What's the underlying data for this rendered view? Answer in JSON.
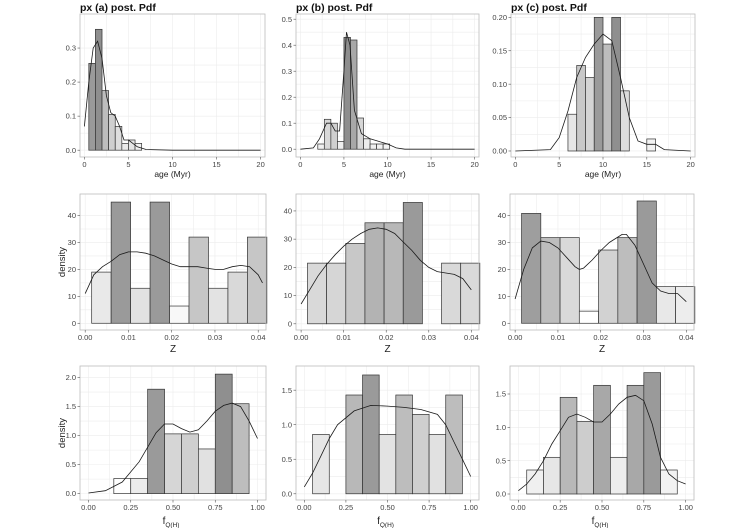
{
  "chart_data": [
    {
      "id": "a-age",
      "type": "bar",
      "title": "px (a) post. Pdf",
      "xlabel": "age (Myr)",
      "ylabel": "",
      "xlim": [
        -0.5,
        20.5
      ],
      "ylim": [
        -0.02,
        0.4
      ],
      "xticks": [
        0,
        5,
        10,
        15,
        20
      ],
      "yticks": [
        0.0,
        0.1,
        0.2,
        0.3
      ],
      "xtick_labels": [
        "0",
        "5",
        "10",
        "15",
        "20"
      ],
      "ytick_labels": [
        "0.0",
        "0.1",
        "0.2",
        "0.3"
      ],
      "bin_width": 0.75,
      "bins_left": [
        0.5,
        1.25,
        2.0,
        2.75,
        3.5,
        4.25,
        5.0,
        5.75
      ],
      "values": [
        0.255,
        0.355,
        0.175,
        0.105,
        0.07,
        0.02,
        0.03,
        0.02
      ],
      "shades": [
        "#9a9a9a",
        "#8f8f8f",
        "#bdbdbd",
        "#cfcfcf",
        "#dedede",
        "#ebebeb",
        "#e5e5e5",
        "#f2f2f2"
      ],
      "density": [
        [
          0,
          0.07
        ],
        [
          0.5,
          0.2
        ],
        [
          1,
          0.3
        ],
        [
          1.5,
          0.32
        ],
        [
          2,
          0.27
        ],
        [
          2.5,
          0.16
        ],
        [
          3,
          0.11
        ],
        [
          3.5,
          0.1
        ],
        [
          4,
          0.07
        ],
        [
          4.5,
          0.03
        ],
        [
          5,
          0.03
        ],
        [
          5.5,
          0.02
        ],
        [
          6,
          0.01
        ],
        [
          7,
          0.002
        ],
        [
          10,
          0.0
        ],
        [
          20,
          0.0
        ]
      ]
    },
    {
      "id": "b-age",
      "type": "bar",
      "title": "px (b) post. Pdf",
      "xlabel": "age (Myr)",
      "ylabel": "",
      "xlim": [
        -0.5,
        20.5
      ],
      "ylim": [
        -0.03,
        0.52
      ],
      "xticks": [
        0,
        5,
        10,
        15,
        20
      ],
      "yticks": [
        0.0,
        0.1,
        0.2,
        0.3,
        0.4,
        0.5
      ],
      "xtick_labels": [
        "0",
        "5",
        "10",
        "15",
        "20"
      ],
      "ytick_labels": [
        "0.0",
        "0.1",
        "0.2",
        "0.3",
        "0.4",
        "0.5"
      ],
      "bin_width": 0.75,
      "bins_left": [
        2.0,
        2.75,
        3.5,
        4.25,
        5.0,
        5.75,
        6.5,
        7.25,
        8.0,
        8.75,
        9.5
      ],
      "values": [
        0.02,
        0.115,
        0.1,
        0.03,
        0.43,
        0.42,
        0.12,
        0.04,
        0.02,
        0.02,
        0.02
      ],
      "shades": [
        "#f0f0f0",
        "#d8d8d8",
        "#cfcfcf",
        "#eeeeee",
        "#8e8e8e",
        "#a8a8a8",
        "#d6d6d6",
        "#ececec",
        "#f0f0f0",
        "#f2f2f2",
        "#f3f3f3"
      ],
      "density": [
        [
          0,
          0.0
        ],
        [
          1.5,
          0.005
        ],
        [
          2.2,
          0.04
        ],
        [
          3,
          0.1
        ],
        [
          3.5,
          0.1
        ],
        [
          4,
          0.07
        ],
        [
          4.5,
          0.07
        ],
        [
          5,
          0.3
        ],
        [
          5.3,
          0.45
        ],
        [
          5.7,
          0.4
        ],
        [
          6.2,
          0.15
        ],
        [
          7,
          0.06
        ],
        [
          8,
          0.04
        ],
        [
          9,
          0.03
        ],
        [
          10,
          0.02
        ],
        [
          11,
          0.005
        ],
        [
          12,
          0.0
        ],
        [
          20,
          0.0
        ]
      ]
    },
    {
      "id": "c-age",
      "type": "bar",
      "title": "px (c) post. Pdf",
      "xlabel": "age (Myr)",
      "ylabel": "",
      "xlim": [
        -0.5,
        20.5
      ],
      "ylim": [
        -0.009,
        0.205
      ],
      "xticks": [
        0,
        5,
        10,
        15,
        20
      ],
      "yticks": [
        0.0,
        0.05,
        0.1,
        0.15,
        0.2
      ],
      "xtick_labels": [
        "0",
        "5",
        "10",
        "15",
        "20"
      ],
      "ytick_labels": [
        "0.00",
        "0.05",
        "0.10",
        "0.15",
        "0.20"
      ],
      "bin_width": 1.0,
      "bins_left": [
        6,
        7,
        8,
        9,
        10,
        11,
        12,
        15
      ],
      "values": [
        0.055,
        0.128,
        0.11,
        0.2,
        0.16,
        0.2,
        0.09,
        0.018
      ],
      "shades": [
        "#e6e6e6",
        "#c8c8c8",
        "#d4d4d4",
        "#9a9a9a",
        "#bdbdbd",
        "#8f8f8f",
        "#dddddd",
        "#f2f2f2"
      ],
      "density": [
        [
          0,
          0.0
        ],
        [
          4,
          0.002
        ],
        [
          5,
          0.02
        ],
        [
          6,
          0.06
        ],
        [
          7,
          0.11
        ],
        [
          8,
          0.14
        ],
        [
          9,
          0.16
        ],
        [
          10,
          0.175
        ],
        [
          11,
          0.165
        ],
        [
          12,
          0.11
        ],
        [
          13,
          0.05
        ],
        [
          14,
          0.015
        ],
        [
          15,
          0.01
        ],
        [
          16,
          0.01
        ],
        [
          17,
          0.002
        ],
        [
          20,
          0.0
        ]
      ]
    },
    {
      "id": "a-z",
      "type": "bar",
      "title": "",
      "xlabel": "Z",
      "ylabel": "density",
      "xlim": [
        -0.0012,
        0.0418
      ],
      "ylim": [
        -2.5,
        48
      ],
      "xticks": [
        0.0,
        0.01,
        0.02,
        0.03,
        0.04
      ],
      "yticks": [
        0,
        10,
        20,
        30,
        40
      ],
      "xtick_labels": [
        "0.00",
        "0.01",
        "0.02",
        "0.03",
        "0.04"
      ],
      "ytick_labels": [
        "0",
        "10",
        "20",
        "30",
        "40"
      ],
      "bin_width": 0.0045,
      "bins_left": [
        0.0015,
        0.006,
        0.0105,
        0.015,
        0.0195,
        0.024,
        0.0285,
        0.033,
        0.0375
      ],
      "values": [
        19,
        45,
        13,
        45,
        6.4,
        32,
        13,
        19,
        32
      ],
      "shades": [
        "#e9e9e9",
        "#9a9a9a",
        "#e2e2e2",
        "#9a9a9a",
        "#f8f8f8",
        "#c6c6c6",
        "#e3e3e3",
        "#d9d9d9",
        "#c6c6c6"
      ],
      "density": [
        [
          0,
          11
        ],
        [
          0.002,
          18
        ],
        [
          0.004,
          21
        ],
        [
          0.006,
          23
        ],
        [
          0.008,
          25.5
        ],
        [
          0.01,
          26.5
        ],
        [
          0.012,
          26.5
        ],
        [
          0.014,
          26
        ],
        [
          0.016,
          25
        ],
        [
          0.018,
          23.5
        ],
        [
          0.02,
          22
        ],
        [
          0.022,
          21
        ],
        [
          0.024,
          21
        ],
        [
          0.026,
          21
        ],
        [
          0.028,
          20.5
        ],
        [
          0.03,
          20
        ],
        [
          0.032,
          20
        ],
        [
          0.034,
          21
        ],
        [
          0.036,
          21.5
        ],
        [
          0.038,
          21
        ],
        [
          0.04,
          18
        ],
        [
          0.041,
          15
        ]
      ]
    },
    {
      "id": "b-z",
      "type": "bar",
      "title": "",
      "xlabel": "Z",
      "ylabel": "",
      "xlim": [
        -0.0012,
        0.0418
      ],
      "ylim": [
        -2.2,
        46
      ],
      "xticks": [
        0.0,
        0.01,
        0.02,
        0.03,
        0.04
      ],
      "yticks": [
        0,
        10,
        20,
        30,
        40
      ],
      "xtick_labels": [
        "0.00",
        "0.01",
        "0.02",
        "0.03",
        "0.04"
      ],
      "ytick_labels": [
        "0",
        "10",
        "20",
        "30",
        "40"
      ],
      "bin_width": 0.0045,
      "bins_left": [
        0.0015,
        0.006,
        0.0105,
        0.015,
        0.0195,
        0.024,
        0.0285,
        0.033,
        0.0375
      ],
      "values": [
        21.5,
        21.5,
        28.5,
        35.8,
        35.8,
        43,
        0,
        21.5,
        21.5
      ],
      "shades": [
        "#d9d9d9",
        "#d6d6d6",
        "#c8c8c8",
        "#b3b3b3",
        "#b8b8b8",
        "#9a9a9a",
        "#ffffff",
        "#d9d9d9",
        "#d9d9d9"
      ],
      "density": [
        [
          0,
          7
        ],
        [
          0.002,
          12
        ],
        [
          0.004,
          17
        ],
        [
          0.006,
          21
        ],
        [
          0.008,
          24.5
        ],
        [
          0.01,
          27.5
        ],
        [
          0.012,
          30
        ],
        [
          0.014,
          32
        ],
        [
          0.016,
          33.5
        ],
        [
          0.018,
          34
        ],
        [
          0.02,
          33.5
        ],
        [
          0.022,
          32
        ],
        [
          0.024,
          29
        ],
        [
          0.026,
          26
        ],
        [
          0.028,
          22.5
        ],
        [
          0.03,
          20
        ],
        [
          0.032,
          18.5
        ],
        [
          0.034,
          18
        ],
        [
          0.036,
          17.5
        ],
        [
          0.038,
          16
        ],
        [
          0.04,
          12
        ]
      ]
    },
    {
      "id": "c-z",
      "type": "bar",
      "title": "",
      "xlabel": "Z",
      "ylabel": "",
      "xlim": [
        -0.0012,
        0.0418
      ],
      "ylim": [
        -2.5,
        48
      ],
      "xticks": [
        0.0,
        0.01,
        0.02,
        0.03,
        0.04
      ],
      "yticks": [
        0,
        10,
        20,
        30,
        40
      ],
      "xtick_labels": [
        "0.00",
        "0.01",
        "0.02",
        "0.03",
        "0.04"
      ],
      "ytick_labels": [
        "0",
        "10",
        "20",
        "30",
        "40"
      ],
      "bin_width": 0.0045,
      "bins_left": [
        0.0015,
        0.006,
        0.0105,
        0.015,
        0.0195,
        0.024,
        0.0285,
        0.033,
        0.0375
      ],
      "values": [
        40.8,
        31.8,
        31.8,
        4.5,
        27.2,
        31.8,
        45.4,
        13.6,
        13.6
      ],
      "shades": [
        "#9e9e9e",
        "#bdbdbd",
        "#d9d9d9",
        "#ffffff",
        "#d2d2d2",
        "#bdbdbd",
        "#9a9a9a",
        "#e8e8e8",
        "#ededed"
      ],
      "density": [
        [
          0,
          9
        ],
        [
          0.002,
          20
        ],
        [
          0.004,
          28
        ],
        [
          0.006,
          30.5
        ],
        [
          0.008,
          30
        ],
        [
          0.01,
          28
        ],
        [
          0.012,
          24.5
        ],
        [
          0.014,
          21
        ],
        [
          0.015,
          20
        ],
        [
          0.016,
          20.5
        ],
        [
          0.018,
          23.5
        ],
        [
          0.02,
          27
        ],
        [
          0.022,
          30
        ],
        [
          0.024,
          32
        ],
        [
          0.025,
          33
        ],
        [
          0.026,
          33
        ],
        [
          0.028,
          29
        ],
        [
          0.03,
          22
        ],
        [
          0.032,
          15
        ],
        [
          0.034,
          12
        ],
        [
          0.036,
          11
        ],
        [
          0.038,
          11
        ],
        [
          0.04,
          8
        ]
      ]
    },
    {
      "id": "a-fq",
      "type": "bar",
      "title": "",
      "xlabel": "f_Q(H)",
      "xlabel_main": "f",
      "xlabel_sub": "Q(H)",
      "ylabel": "density",
      "xlim": [
        -0.05,
        1.05
      ],
      "ylim": [
        -0.11,
        2.2
      ],
      "xticks": [
        0.0,
        0.25,
        0.5,
        0.75,
        1.0
      ],
      "yticks": [
        0.0,
        0.5,
        1.0,
        1.5,
        2.0
      ],
      "xtick_labels": [
        "0.00",
        "0.25",
        "0.50",
        "0.75",
        "1.00"
      ],
      "ytick_labels": [
        "0.0",
        "0.5",
        "1.0",
        "1.5",
        "2.0"
      ],
      "bin_width": 0.1,
      "bins_left": [
        0.15,
        0.25,
        0.35,
        0.45,
        0.55,
        0.65,
        0.75,
        0.85
      ],
      "values": [
        0.26,
        0.26,
        1.8,
        1.03,
        1.03,
        0.77,
        2.06,
        1.55
      ],
      "shades": [
        "#ffffff",
        "#ececec",
        "#9a9a9a",
        "#d6d6d6",
        "#cfcfcf",
        "#e1e1e1",
        "#8f8f8f",
        "#bdbdbd"
      ],
      "density": [
        [
          0,
          0.01
        ],
        [
          0.1,
          0.05
        ],
        [
          0.2,
          0.2
        ],
        [
          0.3,
          0.55
        ],
        [
          0.4,
          1.05
        ],
        [
          0.45,
          1.2
        ],
        [
          0.5,
          1.2
        ],
        [
          0.55,
          1.12
        ],
        [
          0.6,
          1.06
        ],
        [
          0.65,
          1.1
        ],
        [
          0.7,
          1.25
        ],
        [
          0.75,
          1.42
        ],
        [
          0.8,
          1.52
        ],
        [
          0.85,
          1.56
        ],
        [
          0.9,
          1.5
        ],
        [
          0.95,
          1.25
        ],
        [
          1.0,
          0.95
        ]
      ]
    },
    {
      "id": "b-fq",
      "type": "bar",
      "title": "",
      "xlabel": "f_Q(H)",
      "xlabel_main": "f",
      "xlabel_sub": "Q(H)",
      "ylabel": "",
      "xlim": [
        -0.05,
        1.05
      ],
      "ylim": [
        -0.09,
        1.85
      ],
      "xticks": [
        0.0,
        0.25,
        0.5,
        0.75,
        1.0
      ],
      "yticks": [
        0.0,
        0.5,
        1.0,
        1.5
      ],
      "xtick_labels": [
        "0.00",
        "0.25",
        "0.50",
        "0.75",
        "1.00"
      ],
      "ytick_labels": [
        "0.0",
        "0.5",
        "1.0",
        "1.5"
      ],
      "bin_width": 0.1,
      "bins_left": [
        0.05,
        0.15,
        0.25,
        0.35,
        0.45,
        0.55,
        0.65,
        0.75,
        0.85
      ],
      "values": [
        0.86,
        0.0,
        1.43,
        1.72,
        0.86,
        1.43,
        1.15,
        0.86,
        1.43
      ],
      "shades": [
        "#e6e6e6",
        "#ffffff",
        "#b8b8b8",
        "#9a9a9a",
        "#e3e3e3",
        "#bdbdbd",
        "#cfcfcf",
        "#e1e1e1",
        "#bdbdbd"
      ],
      "density": [
        [
          0,
          0.1
        ],
        [
          0.05,
          0.3
        ],
        [
          0.1,
          0.55
        ],
        [
          0.15,
          0.8
        ],
        [
          0.2,
          1.0
        ],
        [
          0.3,
          1.2
        ],
        [
          0.4,
          1.28
        ],
        [
          0.5,
          1.27
        ],
        [
          0.6,
          1.25
        ],
        [
          0.7,
          1.22
        ],
        [
          0.8,
          1.15
        ],
        [
          0.85,
          1.0
        ],
        [
          0.9,
          0.75
        ],
        [
          0.95,
          0.5
        ],
        [
          1.0,
          0.25
        ]
      ]
    },
    {
      "id": "c-fq",
      "type": "bar",
      "title": "",
      "xlabel": "f_Q(H)",
      "xlabel_main": "f",
      "xlabel_sub": "Q(H)",
      "ylabel": "",
      "xlim": [
        -0.05,
        1.05
      ],
      "ylim": [
        -0.09,
        1.92
      ],
      "xticks": [
        0.0,
        0.25,
        0.5,
        0.75,
        1.0
      ],
      "yticks": [
        0.0,
        0.5,
        1.0,
        1.5
      ],
      "xtick_labels": [
        "0.00",
        "0.25",
        "0.50",
        "0.75",
        "1.00"
      ],
      "ytick_labels": [
        "0.0",
        "0.5",
        "1.0",
        "1.5"
      ],
      "bin_width": 0.1,
      "bins_left": [
        0.05,
        0.15,
        0.25,
        0.35,
        0.45,
        0.55,
        0.65,
        0.75,
        0.85
      ],
      "values": [
        0.36,
        0.55,
        1.45,
        1.09,
        1.63,
        0.55,
        1.63,
        1.82,
        0.36
      ],
      "shades": [
        "#f0f0f0",
        "#e6e6e6",
        "#b8b8b8",
        "#cdcdcd",
        "#a8a8a8",
        "#ededed",
        "#a8a8a8",
        "#9a9a9a",
        "#f2f2f2"
      ],
      "density": [
        [
          0,
          0.05
        ],
        [
          0.05,
          0.15
        ],
        [
          0.1,
          0.3
        ],
        [
          0.15,
          0.5
        ],
        [
          0.2,
          0.75
        ],
        [
          0.25,
          0.95
        ],
        [
          0.3,
          1.15
        ],
        [
          0.35,
          1.2
        ],
        [
          0.4,
          1.15
        ],
        [
          0.45,
          1.08
        ],
        [
          0.5,
          1.08
        ],
        [
          0.55,
          1.2
        ],
        [
          0.6,
          1.35
        ],
        [
          0.65,
          1.45
        ],
        [
          0.7,
          1.48
        ],
        [
          0.75,
          1.4
        ],
        [
          0.8,
          1.05
        ],
        [
          0.85,
          0.55
        ],
        [
          0.9,
          0.3
        ],
        [
          0.95,
          0.2
        ],
        [
          1.0,
          0.15
        ]
      ]
    }
  ]
}
